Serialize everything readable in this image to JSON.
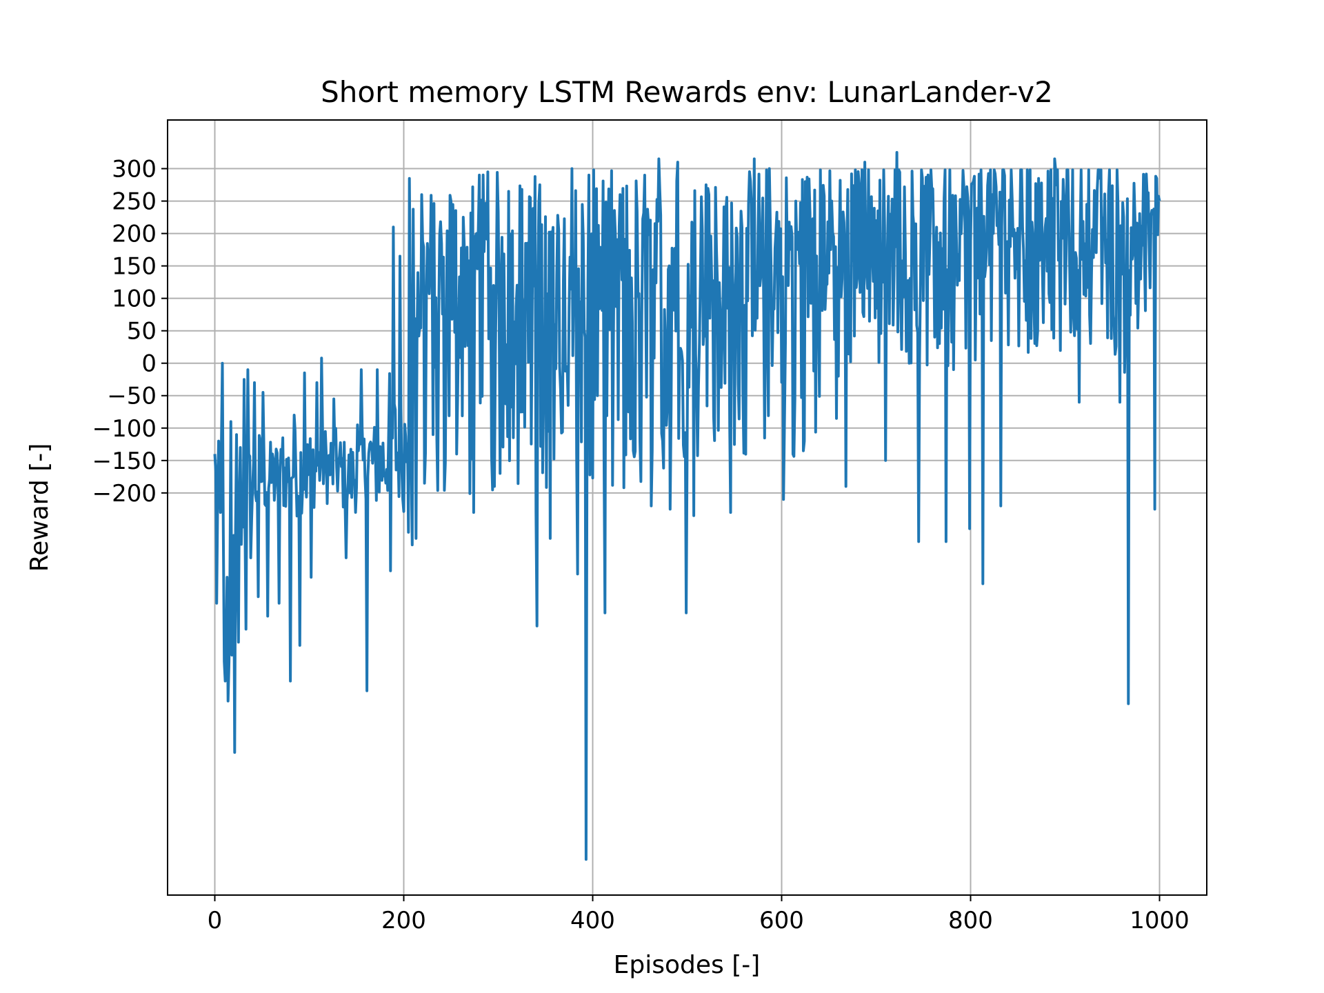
{
  "chart_data": {
    "type": "line",
    "title": "Short memory LSTM Rewards env: LunarLander-v2",
    "xlabel": "Episodes [-]",
    "ylabel": "Reward [-]",
    "xlim": [
      -50,
      1050
    ],
    "ylim": [
      -820,
      375
    ],
    "x_ticks": [
      0,
      200,
      400,
      600,
      800,
      1000
    ],
    "x_tick_labels": [
      "0",
      "200",
      "400",
      "600",
      "800",
      "1000"
    ],
    "y_ticks": [
      300,
      250,
      200,
      150,
      100,
      50,
      0,
      -50,
      -100,
      -150,
      -200
    ],
    "y_tick_labels": [
      "300",
      "250",
      "200",
      "150",
      "100",
      "50",
      "0",
      "−50",
      "−100",
      "−150",
      "−200"
    ],
    "grid": true,
    "legend": "none",
    "series": [
      {
        "color": "#1f77b4",
        "anchors": {
          "x": [
            0,
            2,
            7,
            10,
            12,
            15,
            18,
            21,
            24,
            26,
            30,
            36,
            38,
            45,
            47,
            60,
            78,
            80,
            88,
            90,
            100,
            102,
            108,
            115,
            120,
            130,
            140,
            150,
            152,
            158,
            160,
            162,
            170,
            180,
            185,
            195,
            200,
            210,
            230,
            260,
            300,
            330,
            340,
            350,
            356,
            380,
            393,
            395,
            420,
            455,
            500,
            540,
            580,
            620,
            650,
            700,
            720,
            745,
            760,
            800,
            812,
            820,
            850,
            880,
            900,
            940,
            966,
            968,
            990,
            1000
          ],
          "base": [
            -180,
            -190,
            -200,
            -330,
            -480,
            -430,
            -380,
            -300,
            -300,
            -250,
            -210,
            -200,
            -190,
            -180,
            -170,
            -180,
            -170,
            -160,
            -170,
            -160,
            -170,
            -160,
            -160,
            -150,
            -160,
            -160,
            -180,
            -170,
            -160,
            -160,
            -140,
            -140,
            -160,
            -150,
            -110,
            -140,
            -140,
            110,
            130,
            140,
            150,
            140,
            150,
            150,
            130,
            140,
            160,
            150,
            150,
            150,
            150,
            160,
            170,
            170,
            190,
            220,
            230,
            220,
            220,
            220,
            230,
            230,
            230,
            230,
            225,
            225,
            210,
            210,
            220,
            240
          ],
          "amp": [
            60,
            60,
            80,
            100,
            120,
            110,
            100,
            90,
            90,
            80,
            80,
            80,
            70,
            70,
            70,
            60,
            60,
            70,
            70,
            70,
            70,
            70,
            60,
            60,
            60,
            60,
            60,
            60,
            60,
            60,
            70,
            70,
            70,
            80,
            100,
            90,
            90,
            150,
            150,
            150,
            150,
            150,
            150,
            150,
            150,
            150,
            150,
            150,
            150,
            150,
            150,
            140,
            140,
            140,
            120,
            100,
            100,
            100,
            100,
            100,
            100,
            100,
            100,
            90,
            90,
            90,
            100,
            100,
            80,
            60
          ]
        },
        "spikes": [
          {
            "x": 0,
            "y": -140
          },
          {
            "x": 2,
            "y": -370
          },
          {
            "x": 4,
            "y": -120
          },
          {
            "x": 6,
            "y": -230
          },
          {
            "x": 8,
            "y": 0
          },
          {
            "x": 10,
            "y": -460
          },
          {
            "x": 11,
            "y": -490
          },
          {
            "x": 13,
            "y": -330
          },
          {
            "x": 15,
            "y": -460
          },
          {
            "x": 17,
            "y": -90
          },
          {
            "x": 18,
            "y": -450
          },
          {
            "x": 21,
            "y": -600
          },
          {
            "x": 23,
            "y": -110
          },
          {
            "x": 25,
            "y": -430
          },
          {
            "x": 27,
            "y": -130
          },
          {
            "x": 31,
            "y": -25
          },
          {
            "x": 33,
            "y": -410
          },
          {
            "x": 35,
            "y": -10
          },
          {
            "x": 38,
            "y": -300
          },
          {
            "x": 42,
            "y": -30
          },
          {
            "x": 46,
            "y": -360
          },
          {
            "x": 51,
            "y": -45
          },
          {
            "x": 56,
            "y": -390
          },
          {
            "x": 61,
            "y": -140
          },
          {
            "x": 68,
            "y": -370
          },
          {
            "x": 72,
            "y": -115
          },
          {
            "x": 80,
            "y": -490
          },
          {
            "x": 84,
            "y": -80
          },
          {
            "x": 90,
            "y": -435
          },
          {
            "x": 95,
            "y": -15
          },
          {
            "x": 102,
            "y": -330
          },
          {
            "x": 108,
            "y": -30
          },
          {
            "x": 113,
            "y": 8
          },
          {
            "x": 126,
            "y": -55
          },
          {
            "x": 139,
            "y": -300
          },
          {
            "x": 151,
            "y": -95
          },
          {
            "x": 155,
            "y": -10
          },
          {
            "x": 161,
            "y": -505
          },
          {
            "x": 172,
            "y": -10
          },
          {
            "x": 186,
            "y": -320
          },
          {
            "x": 189,
            "y": 210
          },
          {
            "x": 196,
            "y": 165
          },
          {
            "x": 199,
            "y": -210
          },
          {
            "x": 206,
            "y": 285
          },
          {
            "x": 209,
            "y": -280
          },
          {
            "x": 213,
            "y": -270
          },
          {
            "x": 219,
            "y": 260
          },
          {
            "x": 231,
            "y": -110
          },
          {
            "x": 250,
            "y": 250
          },
          {
            "x": 256,
            "y": -140
          },
          {
            "x": 274,
            "y": -230
          },
          {
            "x": 280,
            "y": 290
          },
          {
            "x": 289,
            "y": 295
          },
          {
            "x": 296,
            "y": -190
          },
          {
            "x": 311,
            "y": 265
          },
          {
            "x": 326,
            "y": -75
          },
          {
            "x": 340,
            "y": -230
          },
          {
            "x": 341,
            "y": -405
          },
          {
            "x": 355,
            "y": -270
          },
          {
            "x": 366,
            "y": -40
          },
          {
            "x": 378,
            "y": 300
          },
          {
            "x": 384,
            "y": -325
          },
          {
            "x": 393,
            "y": -765
          },
          {
            "x": 396,
            "y": 290
          },
          {
            "x": 405,
            "y": -50
          },
          {
            "x": 413,
            "y": -385
          },
          {
            "x": 429,
            "y": 260
          },
          {
            "x": 443,
            "y": -135
          },
          {
            "x": 450,
            "y": -120
          },
          {
            "x": 462,
            "y": -220
          },
          {
            "x": 470,
            "y": 315
          },
          {
            "x": 482,
            "y": -225
          },
          {
            "x": 490,
            "y": 310
          },
          {
            "x": 499,
            "y": -385
          },
          {
            "x": 507,
            "y": -235
          },
          {
            "x": 523,
            "y": 260
          },
          {
            "x": 546,
            "y": -230
          },
          {
            "x": 571,
            "y": 315
          },
          {
            "x": 587,
            "y": 300
          },
          {
            "x": 602,
            "y": -210
          },
          {
            "x": 625,
            "y": 280
          },
          {
            "x": 658,
            "y": -85
          },
          {
            "x": 668,
            "y": -190
          },
          {
            "x": 688,
            "y": 310
          },
          {
            "x": 710,
            "y": -150
          },
          {
            "x": 722,
            "y": 325
          },
          {
            "x": 745,
            "y": -275
          },
          {
            "x": 774,
            "y": -275
          },
          {
            "x": 799,
            "y": -255
          },
          {
            "x": 813,
            "y": -340
          },
          {
            "x": 832,
            "y": -220
          },
          {
            "x": 872,
            "y": 285
          },
          {
            "x": 889,
            "y": 315
          },
          {
            "x": 915,
            "y": -60
          },
          {
            "x": 937,
            "y": 285
          },
          {
            "x": 958,
            "y": -60
          },
          {
            "x": 967,
            "y": -525
          },
          {
            "x": 995,
            "y": -225
          },
          {
            "x": 997,
            "y": 285
          },
          {
            "x": 1000,
            "y": 250
          }
        ]
      }
    ]
  }
}
